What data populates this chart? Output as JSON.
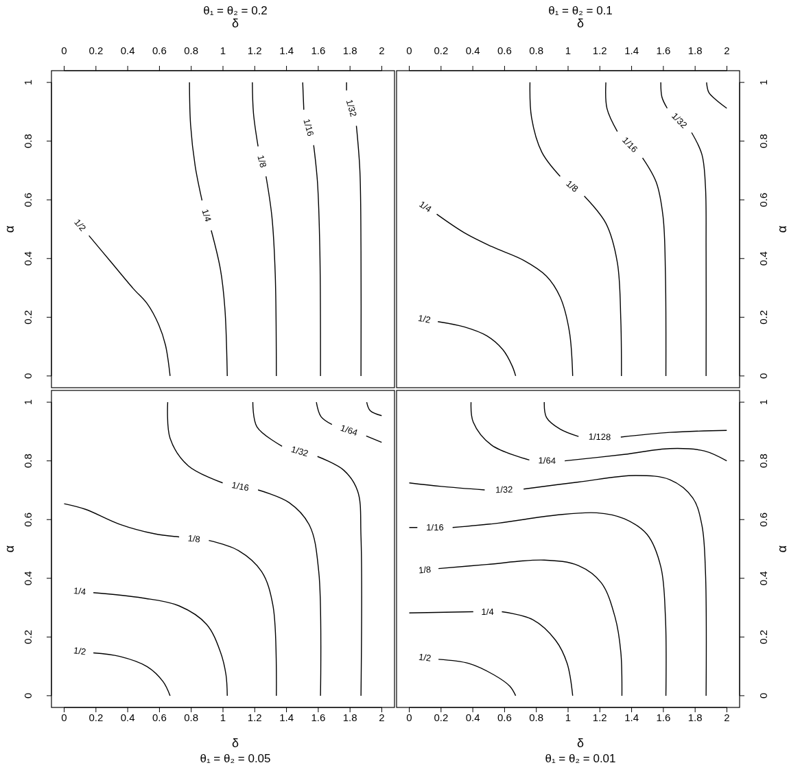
{
  "chart_data": [
    {
      "type": "line",
      "title": "θ₁ = θ₂ = 0.2",
      "xlabel": "δ",
      "ylabel": "α",
      "xlim": [
        -0.08,
        2.08
      ],
      "ylim": [
        -0.04,
        1.04
      ],
      "xticks": [
        0,
        0.2,
        0.4,
        0.6,
        0.8,
        1,
        1.2,
        1.4,
        1.6,
        1.8,
        2
      ],
      "yticks": [
        0,
        0.2,
        0.4,
        0.6,
        0.8,
        1
      ],
      "series": [
        {
          "name": "1/2",
          "color": "#000000",
          "x": [
            0.156,
            0.292,
            0.436,
            0.523,
            0.595,
            0.638,
            0.667
          ],
          "values": [
            0.478,
            0.39,
            0.297,
            0.246,
            0.175,
            0.105,
            0
          ]
        },
        {
          "name": "1/4",
          "color": "#000000",
          "x": [
            0.789,
            0.796,
            0.825,
            0.868,
            0.895,
            0.926,
            0.984,
            1.012,
            1.027
          ],
          "values": [
            1,
            0.856,
            0.715,
            0.598,
            null,
            0.496,
            0.363,
            0.23,
            0
          ]
        },
        {
          "name": "1/8",
          "color": "#000000",
          "x": [
            1.185,
            1.192,
            1.221,
            1.245,
            1.271,
            1.308,
            1.329,
            1.336
          ],
          "values": [
            1,
            0.895,
            0.782,
            null,
            0.68,
            0.543,
            0.347,
            0
          ]
        },
        {
          "name": "1/16",
          "color": "#000000",
          "x": [
            1.502,
            1.509,
            1.54,
            1.571,
            1.595,
            1.61,
            1.614
          ],
          "values": [
            1,
            0.907,
            null,
            0.786,
            0.66,
            0.426,
            0
          ]
        },
        {
          "name": "1/32",
          "color": "#000000",
          "x": [
            1.778,
            1.778,
            1.81,
            1.84,
            1.862,
            1.869,
            1.869
          ],
          "values": [
            1,
            0.973,
            null,
            0.852,
            0.7,
            0.426,
            0
          ]
        }
      ]
    },
    {
      "type": "line",
      "title": "θ₁ = θ₂ = 0.1",
      "xlabel": "δ",
      "ylabel": "α",
      "xlim": [
        -0.08,
        2.08
      ],
      "ylim": [
        -0.04,
        1.04
      ],
      "xticks": [
        0,
        0.2,
        0.4,
        0.6,
        0.8,
        1,
        1.2,
        1.4,
        1.6,
        1.8,
        2
      ],
      "yticks": [
        0,
        0.2,
        0.4,
        0.6,
        0.8,
        1
      ],
      "series": [
        {
          "name": "1/2",
          "color": "#000000",
          "x": [
            0.18,
            0.346,
            0.49,
            0.59,
            0.648,
            0.67
          ],
          "values": [
            0.185,
            0.167,
            0.136,
            0.089,
            0.034,
            0
          ]
        },
        {
          "name": "1/4",
          "color": "#000000",
          "x": [
            0.173,
            0.346,
            0.518,
            0.72,
            0.864,
            0.95,
            1.008,
            1.029
          ],
          "values": [
            0.551,
            0.488,
            0.441,
            0.394,
            0.34,
            0.269,
            0.152,
            0
          ]
        },
        {
          "name": "1/8",
          "color": "#000000",
          "x": [
            0.76,
            0.77,
            0.835,
            0.95,
            1.03,
            1.102,
            1.238,
            1.31,
            1.332,
            1.336
          ],
          "values": [
            1,
            0.88,
            0.762,
            0.68,
            null,
            0.613,
            0.52,
            0.387,
            0.191,
            0
          ]
        },
        {
          "name": "1/16",
          "color": "#000000",
          "x": [
            1.238,
            1.245,
            1.31,
            1.39,
            1.469,
            1.555,
            1.598,
            1.613,
            1.616
          ],
          "values": [
            1,
            0.911,
            0.833,
            null,
            0.743,
            0.66,
            0.543,
            0.347,
            0
          ]
        },
        {
          "name": "1/32",
          "color": "#000000",
          "x": [
            1.584,
            1.591,
            1.624,
            1.7,
            1.778,
            1.843,
            1.865,
            1.869,
            1.869
          ],
          "values": [
            1,
            0.95,
            0.912,
            null,
            0.829,
            0.754,
            0.645,
            0.426,
            0
          ]
        },
        {
          "color": "#000000",
          "x": [
            1.872,
            1.886,
            1.929,
            1.999
          ],
          "values": [
            1,
            0.966,
            0.942,
            0.912
          ]
        }
      ]
    },
    {
      "type": "line",
      "title": "θ₁ = θ₂ = 0.05",
      "xlabel": "δ",
      "ylabel": "α",
      "xlim": [
        -0.08,
        2.08
      ],
      "ylim": [
        -0.04,
        1.04
      ],
      "xticks": [
        0,
        0.2,
        0.4,
        0.6,
        0.8,
        1,
        1.2,
        1.4,
        1.6,
        1.8,
        2
      ],
      "yticks": [
        0,
        0.2,
        0.4,
        0.6,
        0.8,
        1
      ],
      "series": [
        {
          "name": "1/2",
          "color": "#000000",
          "x": [
            0.184,
            0.35,
            0.523,
            0.623,
            0.667
          ],
          "values": [
            0.146,
            0.134,
            0.099,
            0.048,
            0
          ]
        },
        {
          "name": "1/4",
          "color": "#000000",
          "x": [
            0.184,
            0.494,
            0.724,
            0.897,
            0.984,
            1.019,
            1.027
          ],
          "values": [
            0.351,
            0.333,
            0.306,
            0.243,
            0.149,
            0.071,
            0
          ]
        },
        {
          "name": "1/8",
          "color": "#000000",
          "x": [
            0,
            0.134,
            0.35,
            0.566,
            0.724,
            0.82,
            0.911,
            1.099,
            1.243,
            1.315,
            1.336
          ],
          "values": [
            0.654,
            0.635,
            0.584,
            0.552,
            0.541,
            null,
            0.529,
            0.494,
            0.423,
            0.306,
            0
          ]
        },
        {
          "name": "1/16",
          "color": "#000000",
          "x": [
            0.652,
            0.667,
            0.782,
            0.998,
            1.11,
            1.221,
            1.416,
            1.545,
            1.603,
            1.614
          ],
          "values": [
            1,
            0.877,
            0.783,
            0.725,
            null,
            0.701,
            0.658,
            0.58,
            0.423,
            0
          ]
        },
        {
          "name": "1/32",
          "color": "#000000",
          "x": [
            1.188,
            1.214,
            1.372,
            1.48,
            1.595,
            1.761,
            1.848,
            1.869,
            1.869
          ],
          "values": [
            1,
            0.916,
            0.85,
            null,
            0.815,
            0.768,
            0.697,
            0.541,
            0
          ]
        },
        {
          "name": "1/64",
          "color": "#000000",
          "x": [
            1.588,
            1.617,
            1.686,
            1.79,
            1.902,
            1.999
          ],
          "values": [
            1,
            0.951,
            0.924,
            null,
            0.885,
            0.863
          ]
        },
        {
          "color": "#000000",
          "x": [
            1.905,
            1.927,
            1.999
          ],
          "values": [
            1,
            0.971,
            0.954
          ]
        }
      ]
    },
    {
      "type": "line",
      "title": "θ₁ = θ₂ = 0.01",
      "xlabel": "δ",
      "ylabel": "α",
      "xlim": [
        -0.08,
        2.08
      ],
      "ylim": [
        -0.04,
        1.04
      ],
      "xticks": [
        0,
        0.2,
        0.4,
        0.6,
        0.8,
        1,
        1.2,
        1.4,
        1.6,
        1.8,
        2
      ],
      "yticks": [
        0,
        0.2,
        0.4,
        0.6,
        0.8,
        1
      ],
      "series": [
        {
          "name": "1/2",
          "color": "#000000",
          "x": [
            0.184,
            0.375,
            0.533,
            0.634,
            0.67
          ],
          "values": [
            0.124,
            0.11,
            0.071,
            0.032,
            0
          ]
        },
        {
          "name": "1/4",
          "color": "#000000",
          "x": [
            0,
            0.403,
            0.49,
            0.583,
            0.778,
            0.921,
            0.994,
            1.029
          ],
          "values": [
            0.282,
            0.286,
            null,
            0.286,
            0.259,
            0.189,
            0.11,
            0
          ]
        },
        {
          "name": "1/8",
          "color": "#000000",
          "x": [
            0.184,
            0.489,
            0.85,
            1.066,
            1.21,
            1.296,
            1.332,
            1.339
          ],
          "values": [
            0.433,
            0.447,
            0.462,
            0.443,
            0.384,
            0.267,
            0.149,
            0
          ]
        },
        {
          "name": "1/16",
          "color": "#000000",
          "x": [
            0,
            0.051,
            0.16,
            0.273,
            0.562,
            0.921,
            1.181,
            1.353,
            1.498,
            1.584,
            1.613,
            1.616
          ],
          "values": [
            0.573,
            0.573,
            null,
            0.573,
            0.588,
            0.615,
            0.623,
            0.603,
            0.549,
            0.439,
            0.267,
            0
          ]
        },
        {
          "name": "1/32",
          "color": "#000000",
          "x": [
            0,
            0.202,
            0.475,
            0.6,
            0.72,
            1.066,
            1.425,
            1.641,
            1.785,
            1.843,
            1.865,
            1.869
          ],
          "values": [
            0.725,
            0.713,
            0.701,
            null,
            0.704,
            0.728,
            0.75,
            0.736,
            0.674,
            0.58,
            0.423,
            0
          ]
        },
        {
          "name": "1/64",
          "color": "#000000",
          "x": [
            0.389,
            0.403,
            0.518,
            0.756,
            0.87,
            0.979,
            1.353,
            1.641,
            1.857,
            1.999
          ],
          "values": [
            1,
            0.932,
            0.854,
            0.803,
            null,
            0.8,
            0.822,
            0.842,
            0.834,
            0.8
          ]
        },
        {
          "name": "1/128",
          "color": "#000000",
          "x": [
            0.85,
            0.864,
            0.95,
            1.066,
            1.2,
            1.332,
            1.641,
            1.999
          ],
          "values": [
            1,
            0.948,
            0.908,
            0.883,
            null,
            0.881,
            0.897,
            0.904
          ]
        }
      ]
    }
  ]
}
